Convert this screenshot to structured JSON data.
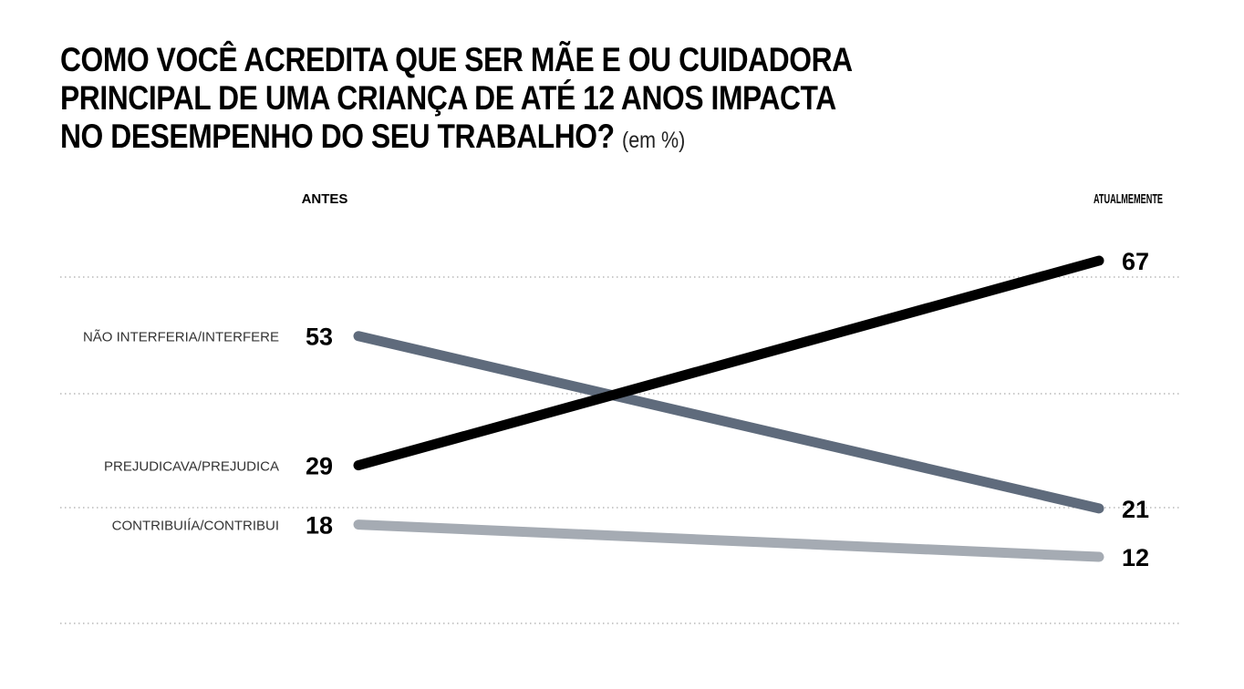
{
  "title": {
    "line1": "COMO VOCÊ ACREDITA QUE SER MÃE E OU CUIDADORA",
    "line2": "PRINCIPAL DE UMA CRIANÇA DE ATÉ 12 ANOS IMPACTA",
    "line3": "NO DESEMPENHO DO SEU TRABALHO?",
    "unit": "(em %)"
  },
  "chart_data": {
    "type": "line",
    "x": [
      "ANTES",
      "ATUALMEMENTE"
    ],
    "series": [
      {
        "name": "NÃO INTERFERIA/INTERFERE",
        "values": [
          53,
          21
        ],
        "color": "#5f6b7c"
      },
      {
        "name": "PREJUDICAVA/PREJUDICA",
        "values": [
          29,
          67
        ],
        "color": "#000000"
      },
      {
        "name": "CONTRIBUIÍA/CONTRIBUI",
        "values": [
          18,
          12
        ],
        "color": "#a5abb3"
      }
    ],
    "grid": "dotted horizontal"
  }
}
